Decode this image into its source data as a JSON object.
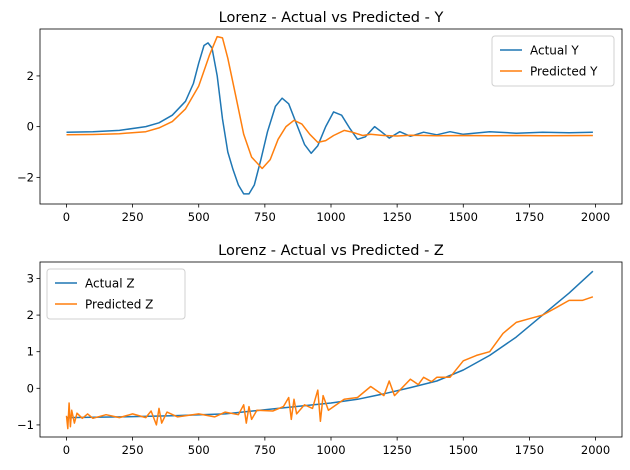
{
  "chart_data": [
    {
      "type": "line",
      "title": "Lorenz - Actual vs Predicted - Y",
      "xlim": [
        -100,
        2100
      ],
      "ylim": [
        -3.05,
        3.85
      ],
      "xticks": [
        0,
        250,
        500,
        750,
        1000,
        1250,
        1500,
        1750,
        2000
      ],
      "yticks": [
        -2,
        0,
        2
      ],
      "grid": false,
      "legend_position": "upper-right",
      "series": [
        {
          "name": "Actual Y",
          "color": "#1f77b4",
          "points": [
            [
              0,
              -0.22
            ],
            [
              100,
              -0.2
            ],
            [
              200,
              -0.15
            ],
            [
              300,
              0.0
            ],
            [
              350,
              0.15
            ],
            [
              400,
              0.45
            ],
            [
              450,
              1.0
            ],
            [
              480,
              1.7
            ],
            [
              500,
              2.5
            ],
            [
              520,
              3.2
            ],
            [
              535,
              3.3
            ],
            [
              550,
              3.1
            ],
            [
              570,
              2.0
            ],
            [
              590,
              0.3
            ],
            [
              610,
              -1.0
            ],
            [
              630,
              -1.7
            ],
            [
              650,
              -2.3
            ],
            [
              670,
              -2.65
            ],
            [
              690,
              -2.65
            ],
            [
              710,
              -2.3
            ],
            [
              735,
              -1.3
            ],
            [
              760,
              -0.2
            ],
            [
              790,
              0.8
            ],
            [
              815,
              1.12
            ],
            [
              840,
              0.9
            ],
            [
              870,
              0.1
            ],
            [
              900,
              -0.7
            ],
            [
              925,
              -1.05
            ],
            [
              950,
              -0.75
            ],
            [
              980,
              0.0
            ],
            [
              1010,
              0.58
            ],
            [
              1040,
              0.45
            ],
            [
              1070,
              -0.05
            ],
            [
              1100,
              -0.5
            ],
            [
              1130,
              -0.4
            ],
            [
              1165,
              0.0
            ],
            [
              1190,
              -0.2
            ],
            [
              1220,
              -0.45
            ],
            [
              1260,
              -0.2
            ],
            [
              1300,
              -0.38
            ],
            [
              1350,
              -0.22
            ],
            [
              1400,
              -0.32
            ],
            [
              1450,
              -0.2
            ],
            [
              1500,
              -0.3
            ],
            [
              1600,
              -0.2
            ],
            [
              1700,
              -0.26
            ],
            [
              1800,
              -0.22
            ],
            [
              1900,
              -0.24
            ],
            [
              1990,
              -0.22
            ]
          ]
        },
        {
          "name": "Predicted Y",
          "color": "#ff7f0e",
          "points": [
            [
              0,
              -0.32
            ],
            [
              100,
              -0.31
            ],
            [
              200,
              -0.28
            ],
            [
              300,
              -0.2
            ],
            [
              350,
              -0.05
            ],
            [
              400,
              0.2
            ],
            [
              450,
              0.7
            ],
            [
              500,
              1.6
            ],
            [
              540,
              2.8
            ],
            [
              570,
              3.55
            ],
            [
              590,
              3.5
            ],
            [
              610,
              2.7
            ],
            [
              640,
              1.2
            ],
            [
              670,
              -0.3
            ],
            [
              700,
              -1.2
            ],
            [
              740,
              -1.65
            ],
            [
              770,
              -1.3
            ],
            [
              800,
              -0.5
            ],
            [
              830,
              0.0
            ],
            [
              860,
              0.25
            ],
            [
              890,
              0.1
            ],
            [
              920,
              -0.3
            ],
            [
              950,
              -0.62
            ],
            [
              980,
              -0.55
            ],
            [
              1010,
              -0.35
            ],
            [
              1050,
              -0.15
            ],
            [
              1080,
              -0.22
            ],
            [
              1120,
              -0.35
            ],
            [
              1150,
              -0.3
            ],
            [
              1200,
              -0.35
            ],
            [
              1250,
              -0.37
            ],
            [
              1300,
              -0.34
            ],
            [
              1400,
              -0.36
            ],
            [
              1500,
              -0.35
            ],
            [
              1600,
              -0.36
            ],
            [
              1700,
              -0.35
            ],
            [
              1800,
              -0.36
            ],
            [
              1990,
              -0.35
            ]
          ]
        }
      ]
    },
    {
      "type": "line",
      "title": "Lorenz - Actual vs Predicted - Z",
      "xlim": [
        -100,
        2100
      ],
      "ylim": [
        -1.33,
        3.45
      ],
      "xticks": [
        0,
        250,
        500,
        750,
        1000,
        1250,
        1500,
        1750,
        2000
      ],
      "yticks": [
        -1,
        0,
        1,
        2,
        3
      ],
      "grid": false,
      "legend_position": "upper-left",
      "series": [
        {
          "name": "Actual Z",
          "color": "#1f77b4",
          "points": [
            [
              0,
              -0.8
            ],
            [
              200,
              -0.78
            ],
            [
              400,
              -0.75
            ],
            [
              600,
              -0.7
            ],
            [
              800,
              -0.55
            ],
            [
              1000,
              -0.4
            ],
            [
              1100,
              -0.3
            ],
            [
              1200,
              -0.15
            ],
            [
              1300,
              0.02
            ],
            [
              1400,
              0.2
            ],
            [
              1500,
              0.5
            ],
            [
              1600,
              0.9
            ],
            [
              1700,
              1.4
            ],
            [
              1800,
              2.0
            ],
            [
              1900,
              2.6
            ],
            [
              1990,
              3.2
            ]
          ]
        },
        {
          "name": "Predicted Z",
          "color": "#ff7f0e",
          "points": [
            [
              0,
              -0.75
            ],
            [
              5,
              -1.1
            ],
            [
              10,
              -0.4
            ],
            [
              15,
              -1.05
            ],
            [
              20,
              -0.6
            ],
            [
              30,
              -0.95
            ],
            [
              40,
              -0.68
            ],
            [
              60,
              -0.82
            ],
            [
              80,
              -0.7
            ],
            [
              100,
              -0.82
            ],
            [
              150,
              -0.72
            ],
            [
              200,
              -0.8
            ],
            [
              250,
              -0.7
            ],
            [
              300,
              -0.8
            ],
            [
              320,
              -0.62
            ],
            [
              340,
              -1.0
            ],
            [
              350,
              -0.55
            ],
            [
              360,
              -0.95
            ],
            [
              380,
              -0.65
            ],
            [
              420,
              -0.78
            ],
            [
              500,
              -0.7
            ],
            [
              560,
              -0.78
            ],
            [
              600,
              -0.65
            ],
            [
              650,
              -0.72
            ],
            [
              670,
              -0.45
            ],
            [
              680,
              -0.95
            ],
            [
              690,
              -0.5
            ],
            [
              700,
              -0.85
            ],
            [
              720,
              -0.6
            ],
            [
              780,
              -0.62
            ],
            [
              820,
              -0.5
            ],
            [
              840,
              -0.25
            ],
            [
              850,
              -0.85
            ],
            [
              860,
              -0.3
            ],
            [
              870,
              -0.7
            ],
            [
              900,
              -0.45
            ],
            [
              930,
              -0.55
            ],
            [
              950,
              -0.05
            ],
            [
              960,
              -0.9
            ],
            [
              970,
              -0.2
            ],
            [
              990,
              -0.6
            ],
            [
              1050,
              -0.3
            ],
            [
              1100,
              -0.25
            ],
            [
              1150,
              0.05
            ],
            [
              1200,
              -0.2
            ],
            [
              1220,
              0.2
            ],
            [
              1240,
              -0.2
            ],
            [
              1300,
              0.25
            ],
            [
              1330,
              0.1
            ],
            [
              1350,
              0.3
            ],
            [
              1380,
              0.18
            ],
            [
              1400,
              0.3
            ],
            [
              1450,
              0.3
            ],
            [
              1500,
              0.75
            ],
            [
              1550,
              0.9
            ],
            [
              1600,
              1.0
            ],
            [
              1650,
              1.5
            ],
            [
              1700,
              1.8
            ],
            [
              1750,
              1.9
            ],
            [
              1800,
              2.0
            ],
            [
              1850,
              2.2
            ],
            [
              1900,
              2.4
            ],
            [
              1950,
              2.4
            ],
            [
              1990,
              2.5
            ]
          ]
        }
      ]
    }
  ]
}
